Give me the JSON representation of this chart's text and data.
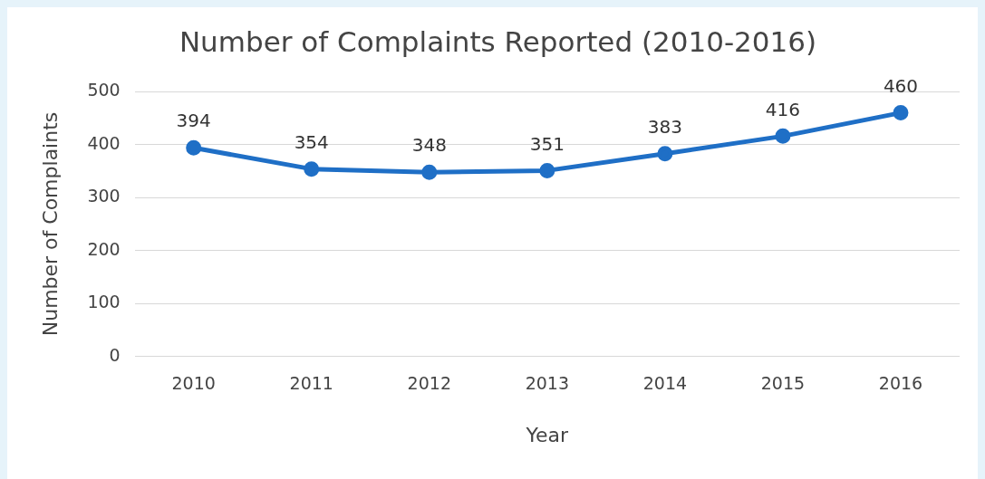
{
  "chart_data": {
    "type": "line",
    "title": "Number of Complaints Reported (2010-2016)",
    "xlabel": "Year",
    "ylabel": "Number of Complaints",
    "categories": [
      "2010",
      "2011",
      "2012",
      "2013",
      "2014",
      "2015",
      "2016"
    ],
    "series": [
      {
        "color": "#1f6fc6",
        "values": [
          394,
          354,
          348,
          351,
          383,
          416,
          460
        ]
      }
    ],
    "ylim": [
      0,
      500
    ],
    "yticks": [
      0,
      100,
      200,
      300,
      400,
      500
    ],
    "grid": "y",
    "marker": "circle",
    "line_style": "solid",
    "data_labels": true
  }
}
